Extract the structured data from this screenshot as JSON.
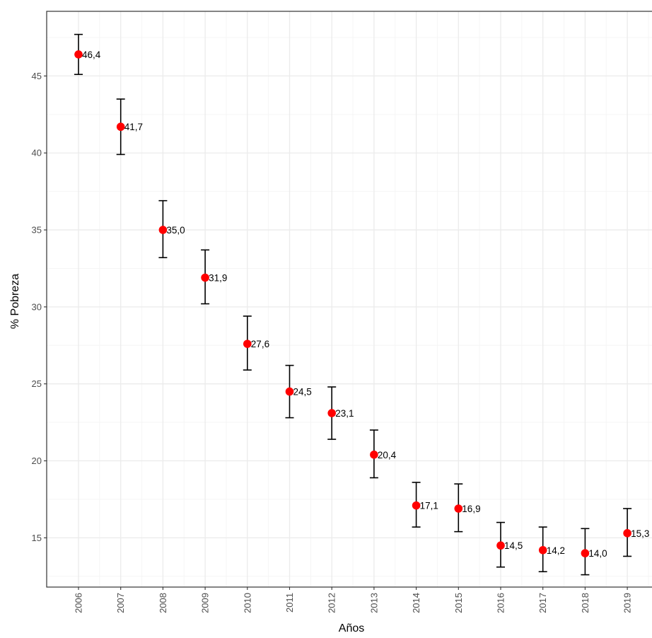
{
  "chart_data": {
    "type": "scatter",
    "xlabel": "Años",
    "ylabel": "% Pobreza",
    "x": [
      "2006",
      "2007",
      "2008",
      "2009",
      "2010",
      "2011",
      "2012",
      "2013",
      "2014",
      "2015",
      "2016",
      "2017",
      "2018",
      "2019"
    ],
    "values": [
      46.4,
      41.7,
      35.0,
      31.9,
      27.6,
      24.5,
      23.1,
      20.4,
      17.1,
      16.9,
      14.5,
      14.2,
      14.0,
      15.3
    ],
    "data_labels": [
      "46,4",
      "41,7",
      "35,0",
      "31,9",
      "27,6",
      "24,5",
      "23,1",
      "20,4",
      "17,1",
      "16,9",
      "14,5",
      "14,2",
      "14,0",
      "15,3"
    ],
    "error_low": [
      45.1,
      39.9,
      33.2,
      30.2,
      25.9,
      22.8,
      21.4,
      18.9,
      15.7,
      15.4,
      13.1,
      12.8,
      12.6,
      13.8
    ],
    "error_high": [
      47.7,
      43.5,
      36.9,
      33.7,
      29.4,
      26.2,
      24.8,
      22.0,
      18.6,
      18.5,
      16.0,
      15.7,
      15.6,
      16.9
    ],
    "yticks": [
      15,
      20,
      25,
      30,
      35,
      40,
      45
    ],
    "ytick_labels": [
      "15",
      "20",
      "25",
      "30",
      "35",
      "40",
      "45"
    ],
    "ylim": [
      11.8,
      49.2
    ],
    "grid": true,
    "point_color": "#ff0000",
    "errorbar_color": "#000000",
    "grid_major_color": "#ebebeb",
    "grid_minor_color": "#f5f5f5",
    "panel_border_color": "#333333"
  }
}
